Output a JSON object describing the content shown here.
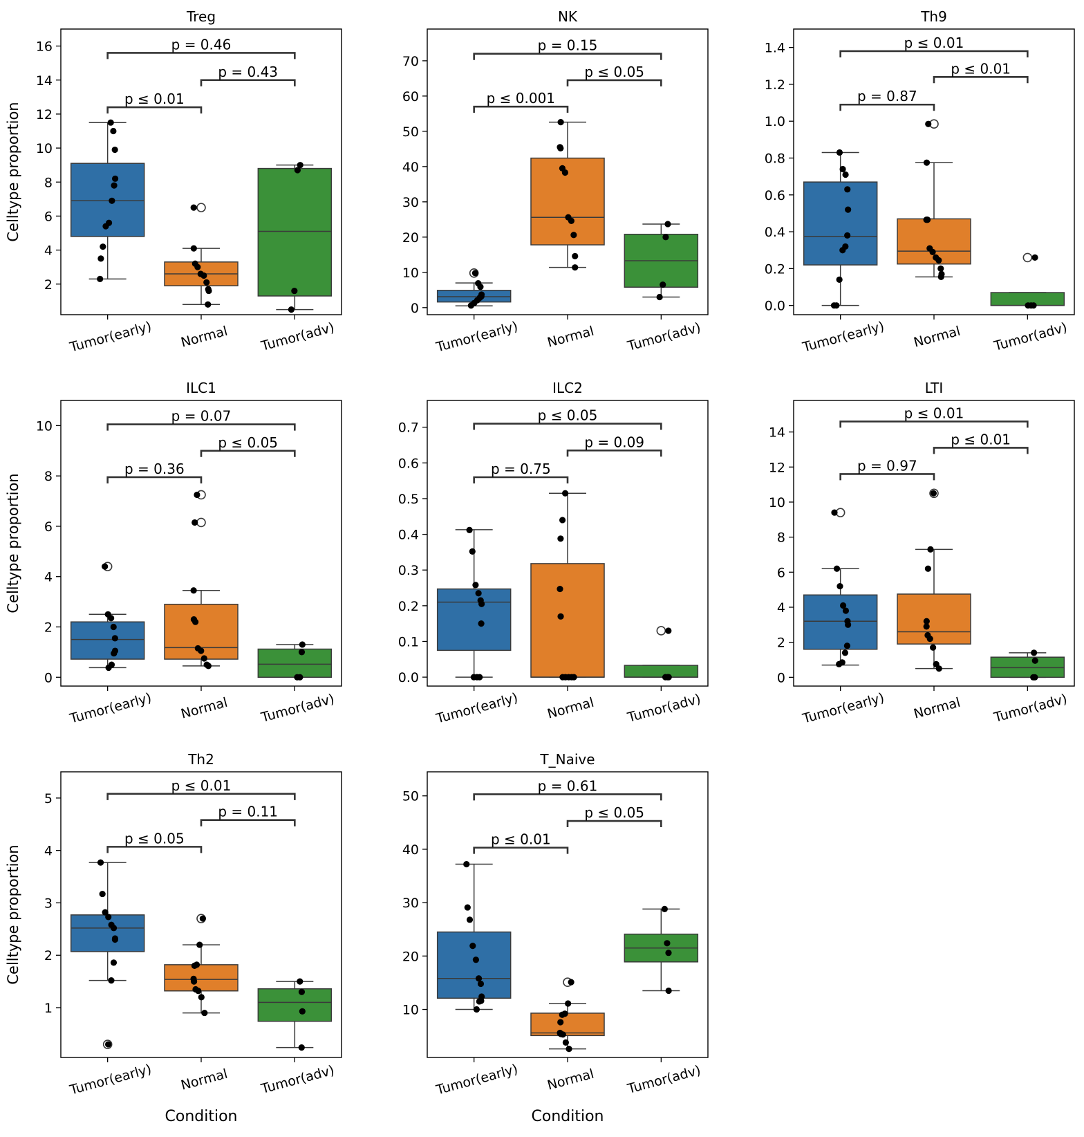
{
  "figure": {
    "ylabel": "Celltype proportion",
    "xlabel": "Condition",
    "colors": {
      "Tumor(early)": "#2f6fa6",
      "Normal": "#e07f2a",
      "Tumor(adv)": "#3b9139"
    }
  },
  "chart_data": [
    {
      "type": "box",
      "title": "Treg",
      "categories": [
        "Tumor(early)",
        "Normal",
        "Tumor(adv)"
      ],
      "ylim": [
        0.2,
        17.0
      ],
      "yticks": [
        2,
        4,
        6,
        8,
        10,
        12,
        14,
        16
      ],
      "tick_fmt": "int",
      "boxes": [
        {
          "q1": 4.8,
          "median": 6.9,
          "q3": 9.1,
          "whisker_low": 2.3,
          "whisker_high": 11.5,
          "outliers": []
        },
        {
          "q1": 1.9,
          "median": 2.6,
          "q3": 3.3,
          "whisker_low": 0.8,
          "whisker_high": 4.1,
          "outliers": [
            6.5
          ]
        },
        {
          "q1": 1.3,
          "median": 5.1,
          "q3": 8.8,
          "whisker_low": 0.5,
          "whisker_high": 9.0,
          "outliers": []
        }
      ],
      "points": [
        [
          11.5,
          11.0,
          9.9,
          8.2,
          7.8,
          6.9,
          5.6,
          5.4,
          4.2,
          3.5,
          2.3
        ],
        [
          6.5,
          4.1,
          3.2,
          3.0,
          2.6,
          2.5,
          2.1,
          1.7,
          1.6,
          0.8
        ],
        [
          9.0,
          8.7,
          1.6,
          0.5
        ]
      ],
      "annotations": [
        {
          "from": 0,
          "to": 1,
          "level": 12.4,
          "label": "p ≤ 0.01"
        },
        {
          "from": 1,
          "to": 2,
          "level": 14.0,
          "label": "p = 0.43"
        },
        {
          "from": 0,
          "to": 2,
          "level": 15.6,
          "label": "p = 0.46"
        }
      ]
    },
    {
      "type": "box",
      "title": "NK",
      "categories": [
        "Tumor(early)",
        "Normal",
        "Tumor(adv)"
      ],
      "ylim": [
        -2,
        79
      ],
      "yticks": [
        0,
        10,
        20,
        30,
        40,
        50,
        60,
        70
      ],
      "tick_fmt": "int",
      "boxes": [
        {
          "q1": 1.6,
          "median": 3.1,
          "q3": 4.9,
          "whisker_low": 0.5,
          "whisker_high": 7.0,
          "outliers": [
            9.8
          ]
        },
        {
          "q1": 17.8,
          "median": 25.6,
          "q3": 42.4,
          "whisker_low": 11.4,
          "whisker_high": 52.6,
          "outliers": []
        },
        {
          "q1": 5.8,
          "median": 13.3,
          "q3": 20.8,
          "whisker_low": 3.0,
          "whisker_high": 23.7,
          "outliers": []
        }
      ],
      "points": [
        [
          9.8,
          6.9,
          5.9,
          3.7,
          3.2,
          2.8,
          2.1,
          1.3,
          0.6
        ],
        [
          52.6,
          45.5,
          45.2,
          39.5,
          38.3,
          25.6,
          24.6,
          20.6,
          14.6,
          11.4
        ],
        [
          23.7,
          20.0,
          6.5,
          3.0
        ]
      ],
      "annotations": [
        {
          "from": 0,
          "to": 1,
          "level": 57,
          "label": "p ≤ 0.001"
        },
        {
          "from": 1,
          "to": 2,
          "level": 64.5,
          "label": "p ≤ 0.05"
        },
        {
          "from": 0,
          "to": 2,
          "level": 72,
          "label": "p = 0.15"
        }
      ]
    },
    {
      "type": "box",
      "title": "Th9",
      "categories": [
        "Tumor(early)",
        "Normal",
        "Tumor(adv)"
      ],
      "ylim": [
        -0.05,
        1.5
      ],
      "yticks": [
        0.0,
        0.2,
        0.4,
        0.6,
        0.8,
        1.0,
        1.2,
        1.4
      ],
      "tick_fmt": "1",
      "boxes": [
        {
          "q1": 0.22,
          "median": 0.375,
          "q3": 0.67,
          "whisker_low": 0.0,
          "whisker_high": 0.83,
          "outliers": []
        },
        {
          "q1": 0.225,
          "median": 0.295,
          "q3": 0.47,
          "whisker_low": 0.155,
          "whisker_high": 0.775,
          "outliers": [
            0.985
          ]
        },
        {
          "q1": 0.0,
          "median": 0.0,
          "q3": 0.07,
          "whisker_low": 0.0,
          "whisker_high": 0.07,
          "outliers": [
            0.26
          ]
        }
      ],
      "points": [
        [
          0.83,
          0.74,
          0.71,
          0.63,
          0.52,
          0.38,
          0.32,
          0.3,
          0.14,
          0.0,
          0.0
        ],
        [
          0.985,
          0.775,
          0.465,
          0.465,
          0.31,
          0.29,
          0.26,
          0.245,
          0.2,
          0.17,
          0.155
        ],
        [
          0.26,
          0.0,
          0.0,
          0.0
        ]
      ],
      "annotations": [
        {
          "from": 0,
          "to": 1,
          "level": 1.09,
          "label": "p = 0.87"
        },
        {
          "from": 1,
          "to": 2,
          "level": 1.24,
          "label": "p ≤ 0.01"
        },
        {
          "from": 0,
          "to": 2,
          "level": 1.38,
          "label": "p ≤ 0.01"
        }
      ]
    },
    {
      "type": "box",
      "title": "ILC1",
      "categories": [
        "Tumor(early)",
        "Normal",
        "Tumor(adv)"
      ],
      "ylim": [
        -0.35,
        11.0
      ],
      "yticks": [
        0,
        2,
        4,
        6,
        8,
        10
      ],
      "tick_fmt": "int",
      "boxes": [
        {
          "q1": 0.72,
          "median": 1.5,
          "q3": 2.2,
          "whisker_low": 0.38,
          "whisker_high": 2.5,
          "outliers": [
            4.4
          ]
        },
        {
          "q1": 0.72,
          "median": 1.18,
          "q3": 2.9,
          "whisker_low": 0.45,
          "whisker_high": 3.45,
          "outliers": [
            6.15,
            7.25
          ]
        },
        {
          "q1": 0.0,
          "median": 0.52,
          "q3": 1.12,
          "whisker_low": 0.0,
          "whisker_high": 1.3,
          "outliers": []
        }
      ],
      "points": [
        [
          4.4,
          2.5,
          2.35,
          2.0,
          1.55,
          1.05,
          0.95,
          0.5,
          0.38
        ],
        [
          7.25,
          6.15,
          3.45,
          2.3,
          2.2,
          1.15,
          1.05,
          0.75,
          0.5,
          0.45
        ],
        [
          1.3,
          1.0,
          0.0,
          0.0
        ]
      ],
      "annotations": [
        {
          "from": 0,
          "to": 1,
          "level": 7.95,
          "label": "p = 0.36"
        },
        {
          "from": 1,
          "to": 2,
          "level": 9.0,
          "label": "p ≤ 0.05"
        },
        {
          "from": 0,
          "to": 2,
          "level": 10.05,
          "label": "p = 0.07"
        }
      ]
    },
    {
      "type": "box",
      "title": "ILC2",
      "categories": [
        "Tumor(early)",
        "Normal",
        "Tumor(adv)"
      ],
      "ylim": [
        -0.025,
        0.775
      ],
      "yticks": [
        0.0,
        0.1,
        0.2,
        0.3,
        0.4,
        0.5,
        0.6,
        0.7
      ],
      "tick_fmt": "1",
      "boxes": [
        {
          "q1": 0.075,
          "median": 0.21,
          "q3": 0.247,
          "whisker_low": 0.0,
          "whisker_high": 0.413,
          "outliers": []
        },
        {
          "q1": 0.0,
          "median": 0.0,
          "q3": 0.318,
          "whisker_low": 0.0,
          "whisker_high": 0.515,
          "outliers": []
        },
        {
          "q1": 0.0,
          "median": 0.0,
          "q3": 0.033,
          "whisker_low": 0.0,
          "whisker_high": 0.033,
          "outliers": [
            0.13
          ]
        }
      ],
      "points": [
        [
          0.412,
          0.352,
          0.258,
          0.235,
          0.215,
          0.205,
          0.15,
          0.0,
          0.0,
          0.0
        ],
        [
          0.515,
          0.44,
          0.388,
          0.247,
          0.17,
          0.0,
          0.0,
          0.0,
          0.0,
          0.0
        ],
        [
          0.13,
          0.0,
          0.0,
          0.0
        ]
      ],
      "annotations": [
        {
          "from": 0,
          "to": 1,
          "level": 0.56,
          "label": "p = 0.75"
        },
        {
          "from": 1,
          "to": 2,
          "level": 0.635,
          "label": "p = 0.09"
        },
        {
          "from": 0,
          "to": 2,
          "level": 0.71,
          "label": "p ≤ 0.05"
        }
      ]
    },
    {
      "type": "box",
      "title": "LTI",
      "categories": [
        "Tumor(early)",
        "Normal",
        "Tumor(adv)"
      ],
      "ylim": [
        -0.5,
        15.8
      ],
      "yticks": [
        0,
        2,
        4,
        6,
        8,
        10,
        12,
        14
      ],
      "tick_fmt": "int",
      "boxes": [
        {
          "q1": 1.6,
          "median": 3.2,
          "q3": 4.7,
          "whisker_low": 0.7,
          "whisker_high": 6.2,
          "outliers": [
            9.4
          ]
        },
        {
          "q1": 1.9,
          "median": 2.6,
          "q3": 4.75,
          "whisker_low": 0.5,
          "whisker_high": 7.3,
          "outliers": [
            10.5
          ]
        },
        {
          "q1": 0.0,
          "median": 0.55,
          "q3": 1.15,
          "whisker_low": 0.0,
          "whisker_high": 1.4,
          "outliers": []
        }
      ],
      "points": [
        [
          9.4,
          6.2,
          5.2,
          4.1,
          3.8,
          3.2,
          3.0,
          1.8,
          1.4,
          0.85,
          0.75
        ],
        [
          10.5,
          7.3,
          6.2,
          3.2,
          2.9,
          2.4,
          2.2,
          1.7,
          0.75,
          0.5
        ],
        [
          1.4,
          0.95,
          0.0,
          0.0
        ]
      ],
      "annotations": [
        {
          "from": 0,
          "to": 1,
          "level": 11.6,
          "label": "p = 0.97"
        },
        {
          "from": 1,
          "to": 2,
          "level": 13.1,
          "label": "p ≤ 0.01"
        },
        {
          "from": 0,
          "to": 2,
          "level": 14.6,
          "label": "p ≤ 0.01"
        }
      ]
    },
    {
      "type": "box",
      "title": "Th2",
      "categories": [
        "Tumor(early)",
        "Normal",
        "Tumor(adv)"
      ],
      "ylim": [
        0.05,
        5.5
      ],
      "yticks": [
        1,
        2,
        3,
        4,
        5
      ],
      "tick_fmt": "int",
      "boxes": [
        {
          "q1": 2.07,
          "median": 2.52,
          "q3": 2.77,
          "whisker_low": 1.52,
          "whisker_high": 3.77,
          "outliers": [
            0.3
          ]
        },
        {
          "q1": 1.32,
          "median": 1.54,
          "q3": 1.82,
          "whisker_low": 0.9,
          "whisker_high": 2.2,
          "outliers": [
            2.7
          ]
        },
        {
          "q1": 0.74,
          "median": 1.1,
          "q3": 1.36,
          "whisker_low": 0.24,
          "whisker_high": 1.5,
          "outliers": []
        }
      ],
      "points": [
        [
          3.77,
          3.17,
          2.82,
          2.73,
          2.58,
          2.52,
          2.32,
          2.3,
          1.86,
          1.52,
          0.3
        ],
        [
          2.7,
          2.2,
          1.82,
          1.8,
          1.55,
          1.5,
          1.35,
          1.32,
          1.2,
          0.9
        ],
        [
          1.5,
          1.3,
          0.93,
          0.24
        ]
      ],
      "annotations": [
        {
          "from": 0,
          "to": 1,
          "level": 4.07,
          "label": "p ≤ 0.05"
        },
        {
          "from": 1,
          "to": 2,
          "level": 4.58,
          "label": "p = 0.11"
        },
        {
          "from": 0,
          "to": 2,
          "level": 5.08,
          "label": "p ≤ 0.01"
        }
      ]
    },
    {
      "type": "box",
      "title": "T_Naive",
      "categories": [
        "Tumor(early)",
        "Normal",
        "Tumor(adv)"
      ],
      "ylim": [
        1.0,
        54.5
      ],
      "yticks": [
        10,
        20,
        30,
        40,
        50
      ],
      "tick_fmt": "int",
      "boxes": [
        {
          "q1": 12.1,
          "median": 15.8,
          "q3": 24.5,
          "whisker_low": 10.0,
          "whisker_high": 37.2,
          "outliers": []
        },
        {
          "q1": 5.1,
          "median": 5.6,
          "q3": 9.3,
          "whisker_low": 2.6,
          "whisker_high": 11.1,
          "outliers": [
            15.1
          ]
        },
        {
          "q1": 18.9,
          "median": 21.5,
          "q3": 24.1,
          "whisker_low": 13.5,
          "whisker_high": 28.8,
          "outliers": []
        }
      ],
      "points": [
        [
          37.2,
          29.1,
          26.8,
          21.9,
          19.3,
          15.8,
          14.8,
          12.4,
          11.6,
          11.5,
          10.0
        ],
        [
          15.1,
          11.1,
          9.2,
          9.0,
          7.6,
          5.6,
          5.4,
          5.3,
          3.8,
          2.6
        ],
        [
          28.8,
          22.4,
          20.6,
          13.5
        ]
      ],
      "annotations": [
        {
          "from": 0,
          "to": 1,
          "level": 40.3,
          "label": "p ≤ 0.01"
        },
        {
          "from": 1,
          "to": 2,
          "level": 45.3,
          "label": "p ≤ 0.05"
        },
        {
          "from": 0,
          "to": 2,
          "level": 50.3,
          "label": "p = 0.61"
        }
      ]
    }
  ]
}
